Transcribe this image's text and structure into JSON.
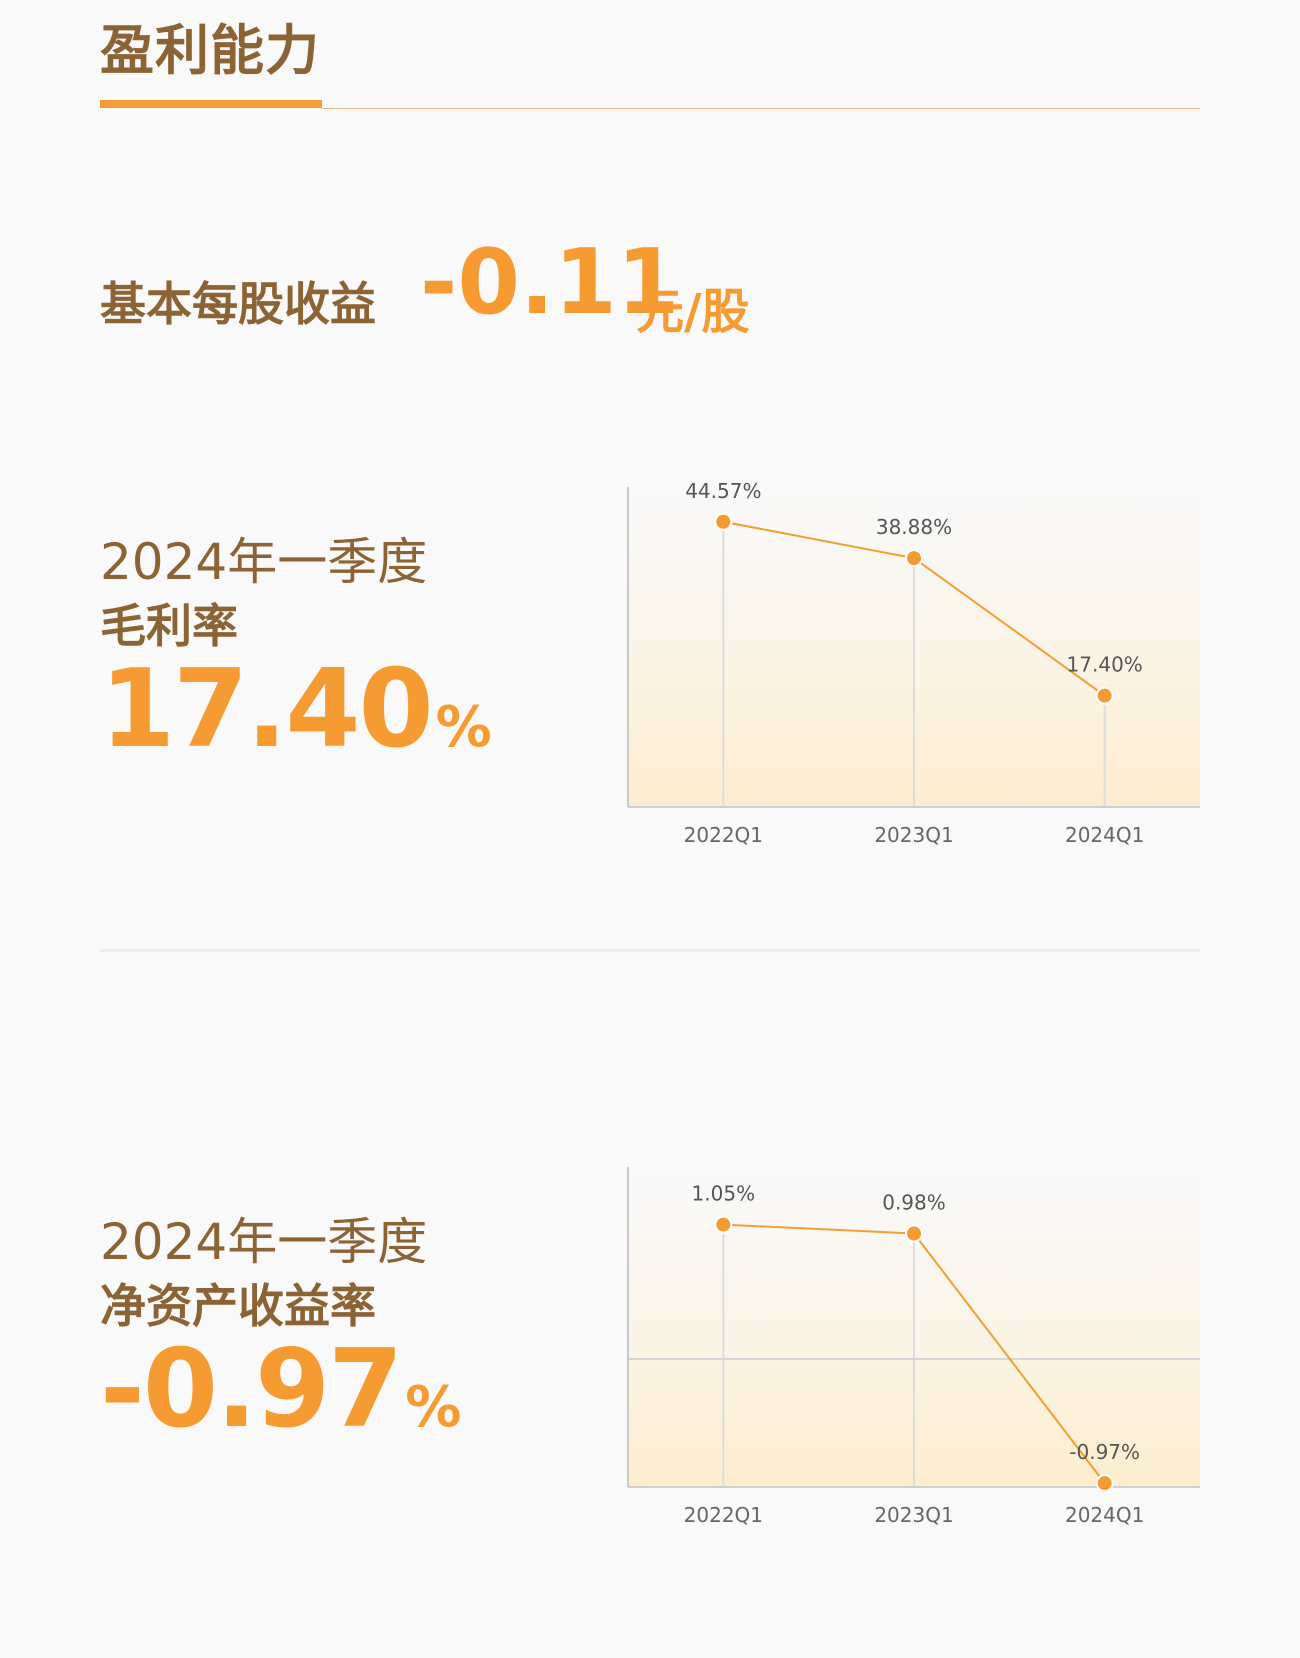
{
  "page": {
    "title": "盈利能力"
  },
  "eps": {
    "label": "基本每股收益",
    "value": "-0.11",
    "unit": "元/股"
  },
  "gross_margin": {
    "period": "2024年一季度",
    "name": "毛利率",
    "value": "17.40",
    "unit": "%"
  },
  "roe": {
    "period": "2024年一季度",
    "name": "净资产收益率",
    "value": "-0.97",
    "unit": "%"
  },
  "colors": {
    "brand_brown": "#8c6334",
    "accent_orange": "#f59b32",
    "line_orange": "#f0a030"
  },
  "chart_data": [
    {
      "type": "line",
      "categories": [
        "2022Q1",
        "2023Q1",
        "2024Q1"
      ],
      "series": [
        {
          "values": [
            44.57,
            38.88,
            17.4
          ]
        }
      ],
      "data_labels": [
        "44.57%",
        "38.88%",
        "17.40%"
      ],
      "ylim": [
        0,
        50
      ],
      "grid": "vertical",
      "fill": "gradient"
    },
    {
      "type": "line",
      "categories": [
        "2022Q1",
        "2023Q1",
        "2024Q1"
      ],
      "series": [
        {
          "values": [
            1.05,
            0.98,
            -0.97
          ]
        }
      ],
      "data_labels": [
        "1.05%",
        "0.98%",
        "-0.97%"
      ],
      "ylim": [
        -1,
        1.5
      ],
      "grid": "vertical",
      "zero_line": true,
      "fill": "gradient"
    }
  ]
}
